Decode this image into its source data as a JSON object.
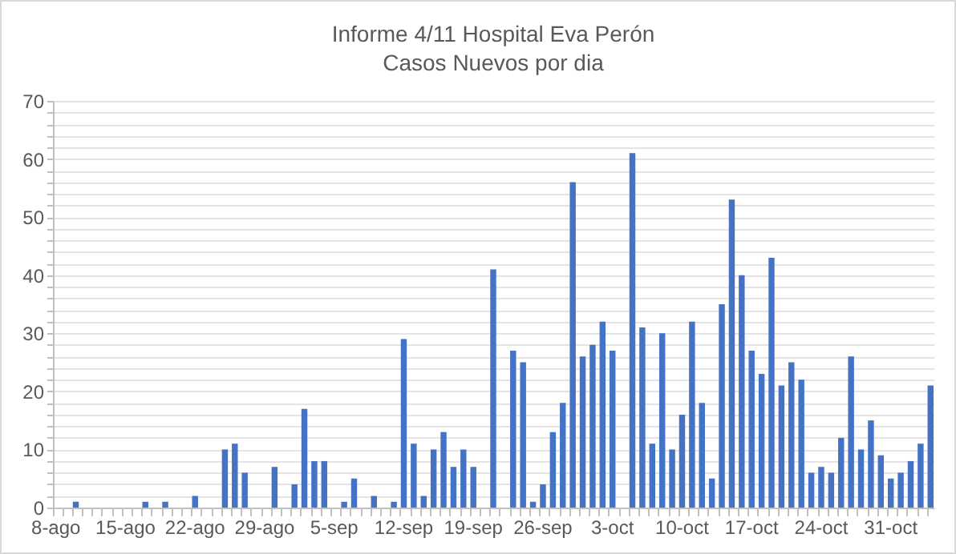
{
  "chart_data": {
    "type": "bar",
    "title": "Informe 4/11 Hospital Eva Perón",
    "subtitle": "Casos Nuevos por dia",
    "categories": [
      "8-ago",
      null,
      null,
      null,
      null,
      null,
      null,
      "15-ago",
      null,
      null,
      null,
      null,
      null,
      null,
      "22-ago",
      null,
      null,
      null,
      null,
      null,
      null,
      "29-ago",
      null,
      null,
      null,
      null,
      null,
      null,
      "5-sep",
      null,
      null,
      null,
      null,
      null,
      null,
      "12-sep",
      null,
      null,
      null,
      null,
      null,
      null,
      "19-sep",
      null,
      null,
      null,
      null,
      null,
      null,
      "26-sep",
      null,
      null,
      null,
      null,
      null,
      null,
      "3-oct",
      null,
      null,
      null,
      null,
      null,
      null,
      "10-oct",
      null,
      null,
      null,
      null,
      null,
      null,
      "17-oct",
      null,
      null,
      null,
      null,
      null,
      null,
      "24-oct",
      null,
      null,
      null,
      null,
      null,
      null,
      "31-oct",
      null,
      null,
      null,
      null
    ],
    "values": [
      0,
      0,
      1,
      0,
      0,
      0,
      0,
      0,
      0,
      1,
      0,
      1,
      0,
      0,
      2,
      0,
      0,
      10,
      11,
      6,
      0,
      0,
      7,
      0,
      4,
      17,
      8,
      8,
      0,
      1,
      5,
      0,
      2,
      0,
      1,
      29,
      11,
      2,
      10,
      13,
      7,
      10,
      7,
      0,
      41,
      0,
      27,
      25,
      1,
      4,
      13,
      18,
      56,
      26,
      28,
      32,
      27,
      0,
      61,
      31,
      11,
      30,
      10,
      16,
      32,
      18,
      5,
      35,
      53,
      40,
      27,
      23,
      43,
      21,
      25,
      22,
      6,
      7,
      6,
      12,
      26,
      10,
      15,
      9,
      5,
      6,
      8,
      11,
      21
    ],
    "color": "#4472c4",
    "ylim": [
      0,
      70
    ],
    "yticks": [
      0,
      {
        "value": 2,
        "label": null
      },
      {
        "value": 4,
        "label": null
      },
      {
        "value": 6,
        "label": null
      },
      {
        "value": 8,
        "label": null
      },
      10,
      {
        "value": 12,
        "label": null
      },
      {
        "value": 14,
        "label": null
      },
      {
        "value": 16,
        "label": null
      },
      {
        "value": 18,
        "label": null
      },
      20,
      {
        "value": 22,
        "label": null
      },
      {
        "value": 24,
        "label": null
      },
      {
        "value": 26,
        "label": null
      },
      {
        "value": 28,
        "label": null
      },
      30,
      {
        "value": 32,
        "label": null
      },
      {
        "value": 34,
        "label": null
      },
      {
        "value": 36,
        "label": null
      },
      {
        "value": 38,
        "label": null
      },
      40,
      {
        "value": 42,
        "label": null
      },
      {
        "value": 44,
        "label": null
      },
      {
        "value": 46,
        "label": null
      },
      {
        "value": 48,
        "label": null
      },
      50,
      {
        "value": 52,
        "label": null
      },
      {
        "value": 54,
        "label": null
      },
      {
        "value": 56,
        "label": null
      },
      {
        "value": 58,
        "label": null
      },
      60,
      {
        "value": 62,
        "label": null
      },
      {
        "value": 64,
        "label": null
      },
      {
        "value": 66,
        "label": null
      },
      {
        "value": 68,
        "label": null
      },
      70
    ],
    "grid": "y"
  }
}
